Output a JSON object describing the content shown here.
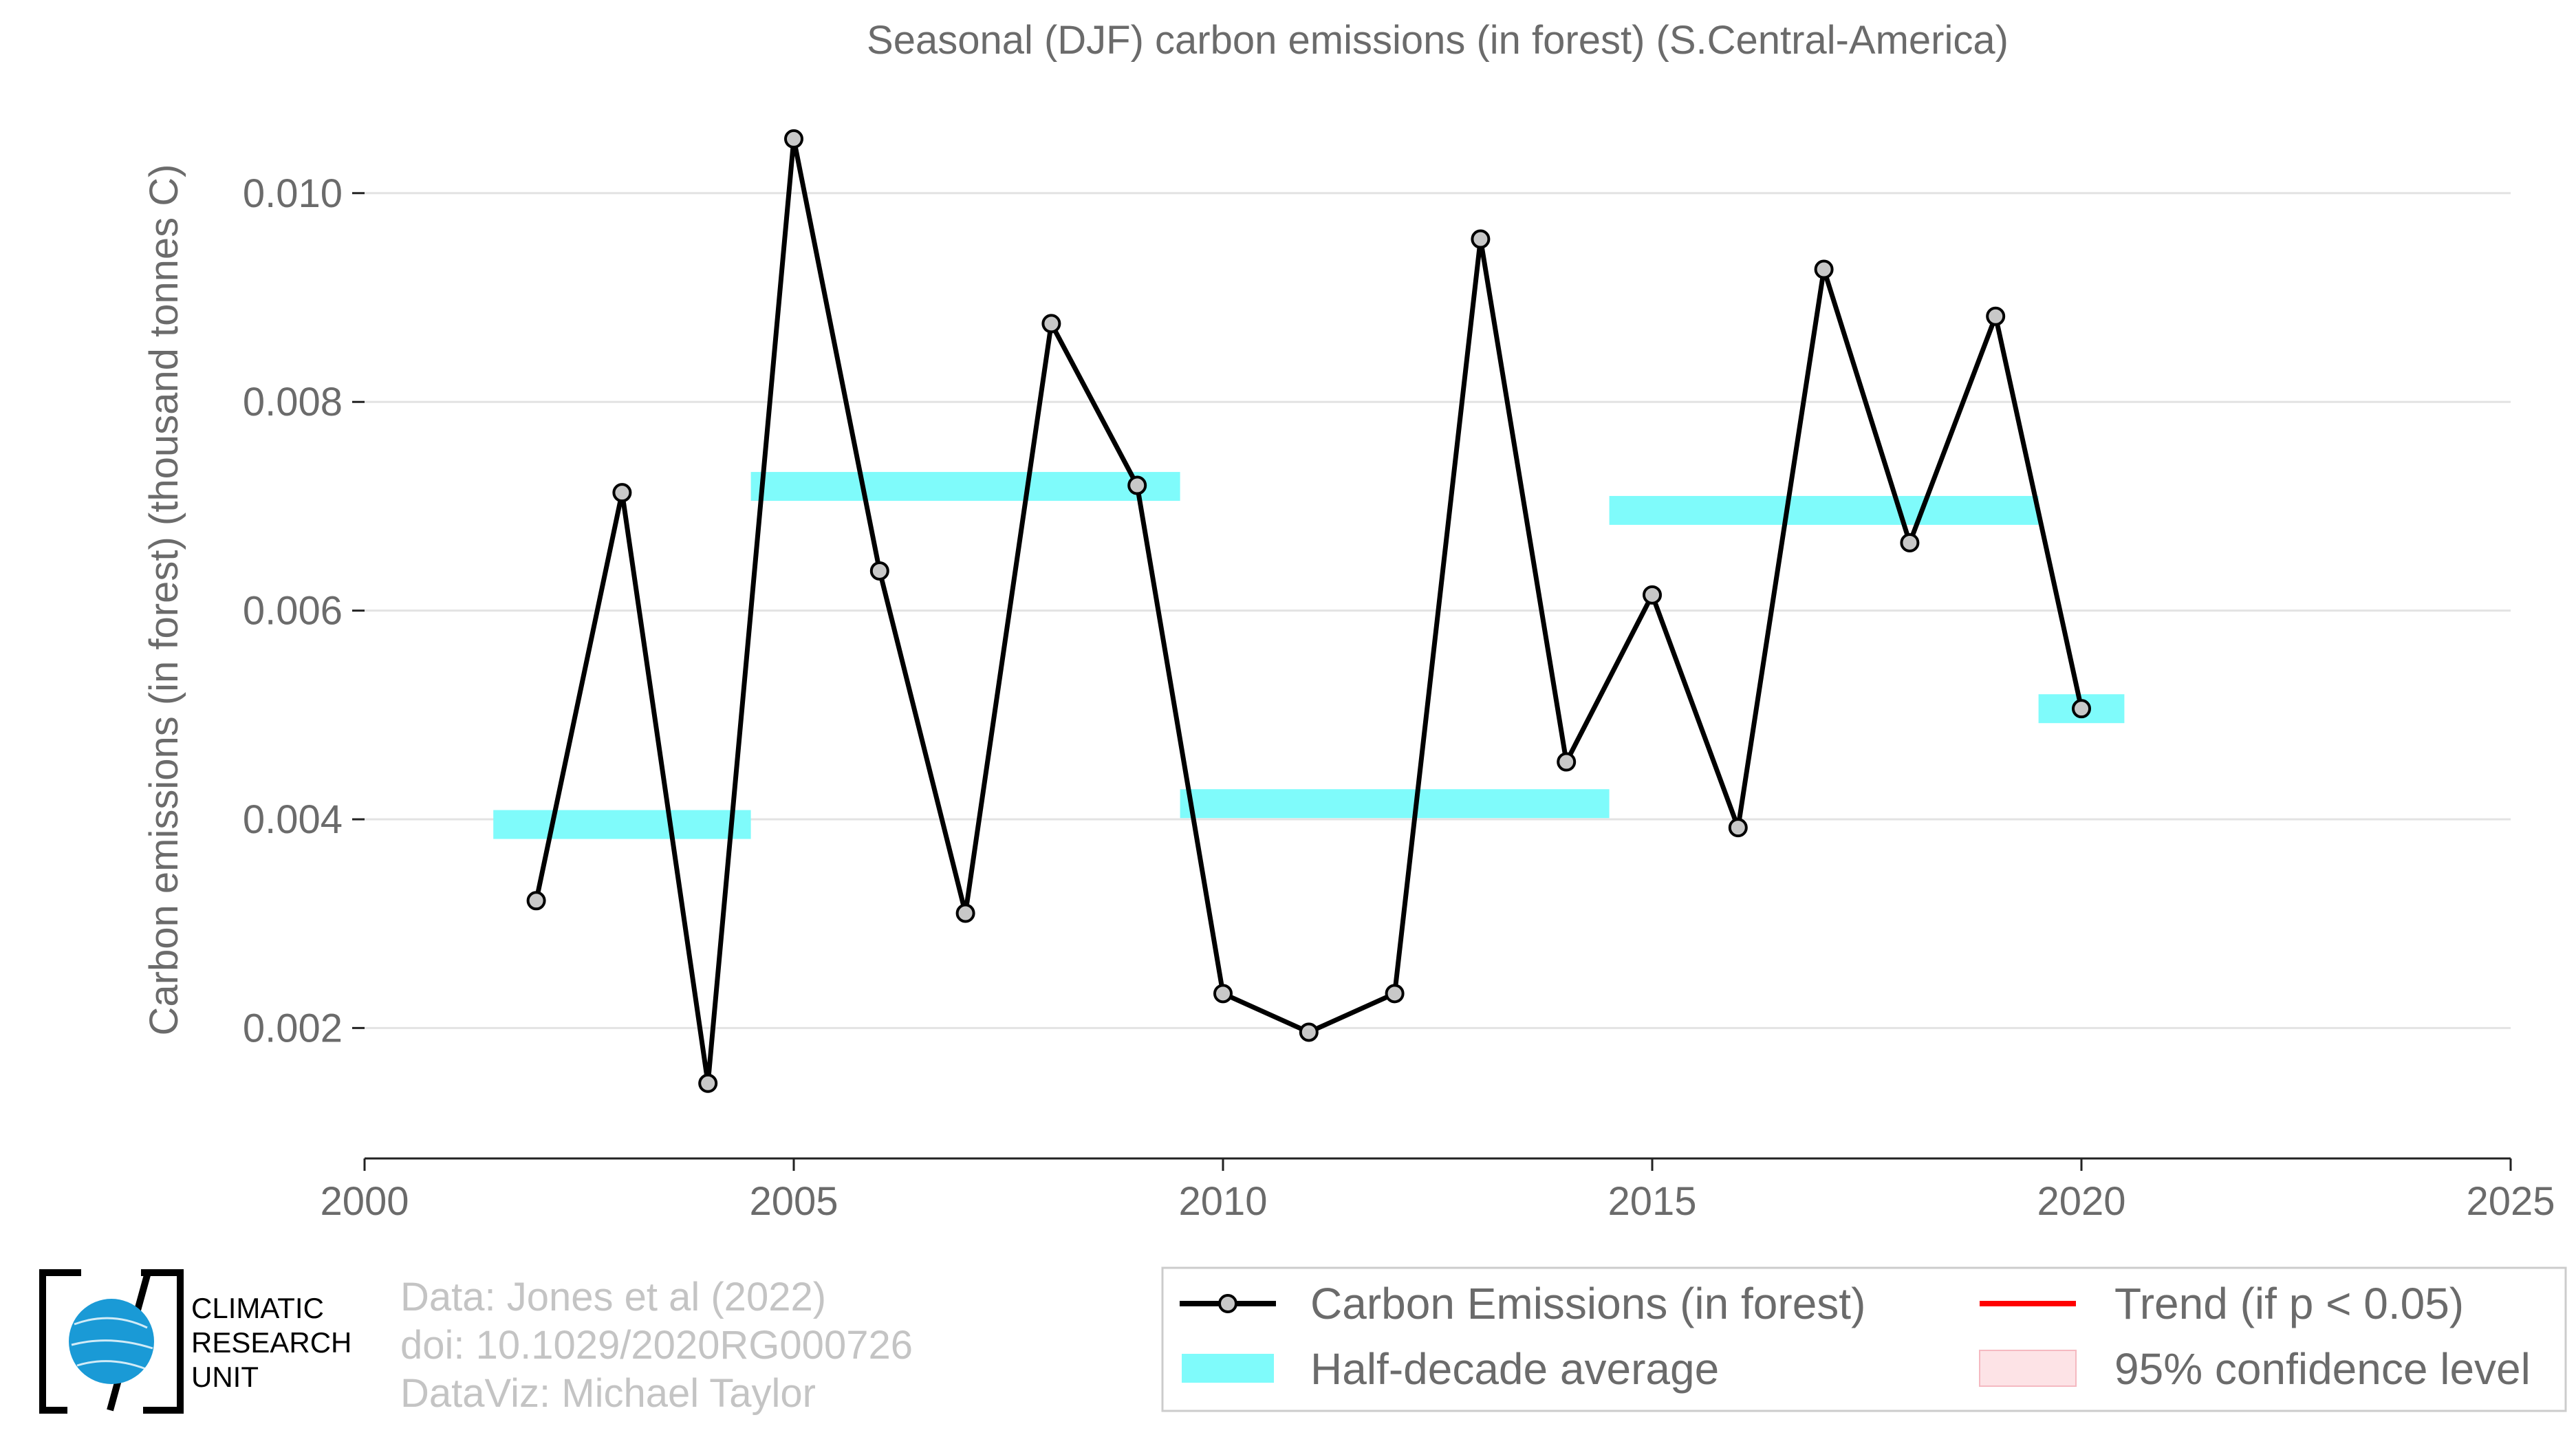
{
  "chart_data": {
    "type": "line",
    "title": "Seasonal (DJF) carbon emissions (in forest) (S.Central-America)",
    "xlabel": "",
    "ylabel": "Carbon emissions (in forest) (thousand tonnes C)",
    "xlim": [
      2000,
      2025
    ],
    "ylim": [
      0.00075,
      0.01106
    ],
    "x_ticks": [
      2000,
      2005,
      2010,
      2015,
      2020,
      2025
    ],
    "y_ticks": [
      0.002,
      0.004,
      0.006,
      0.008,
      0.01
    ],
    "y_tick_labels": [
      "0.002",
      "0.004",
      "0.006",
      "0.008",
      "0.010"
    ],
    "grid": "horizontal",
    "legend_position": "bottom-right",
    "series": [
      {
        "name": "Carbon Emissions (in forest)",
        "color": "#000000",
        "marker_fill": "#c8c8c8",
        "x": [
          2002,
          2003,
          2004,
          2005,
          2006,
          2007,
          2008,
          2009,
          2010,
          2011,
          2012,
          2013,
          2014,
          2015,
          2016,
          2017,
          2018,
          2019,
          2020
        ],
        "y": [
          0.00322,
          0.00713,
          0.00147,
          0.01052,
          0.00638,
          0.0031,
          0.00875,
          0.0072,
          0.00233,
          0.00196,
          0.00233,
          0.00956,
          0.00455,
          0.00615,
          0.00392,
          0.00927,
          0.00665,
          0.00882,
          0.00506
        ]
      }
    ],
    "half_decade_average": {
      "name": "Half-decade average",
      "color": "#7ffbfb",
      "segments": [
        {
          "x_start": 2001.5,
          "x_end": 2004.5,
          "y": 0.00395
        },
        {
          "x_start": 2004.5,
          "x_end": 2009.5,
          "y": 0.00719
        },
        {
          "x_start": 2009.5,
          "x_end": 2014.5,
          "y": 0.00415
        },
        {
          "x_start": 2014.5,
          "x_end": 2019.5,
          "y": 0.00696
        },
        {
          "x_start": 2019.5,
          "x_end": 2020.5,
          "y": 0.00506
        }
      ]
    },
    "legend": [
      {
        "label": "Carbon Emissions (in forest)",
        "kind": "line-marker",
        "color": "#000000"
      },
      {
        "label": "Trend (if p < 0.05)",
        "kind": "line",
        "color": "#ff0000"
      },
      {
        "label": "Half-decade average",
        "kind": "band",
        "color": "#7ffbfb"
      },
      {
        "label": "95% confidence level",
        "kind": "patch",
        "color": "#fde3e6"
      }
    ]
  },
  "credits": {
    "line1": "Data: Jones et al (2022)",
    "line2": "doi: 10.1029/2020RG000726",
    "line3": "DataViz: Michael Taylor"
  },
  "logo": {
    "line1": "CLIMATIC",
    "line2": "RESEARCH",
    "line3": "UNIT",
    "globe_color": "#1a9ad6"
  }
}
